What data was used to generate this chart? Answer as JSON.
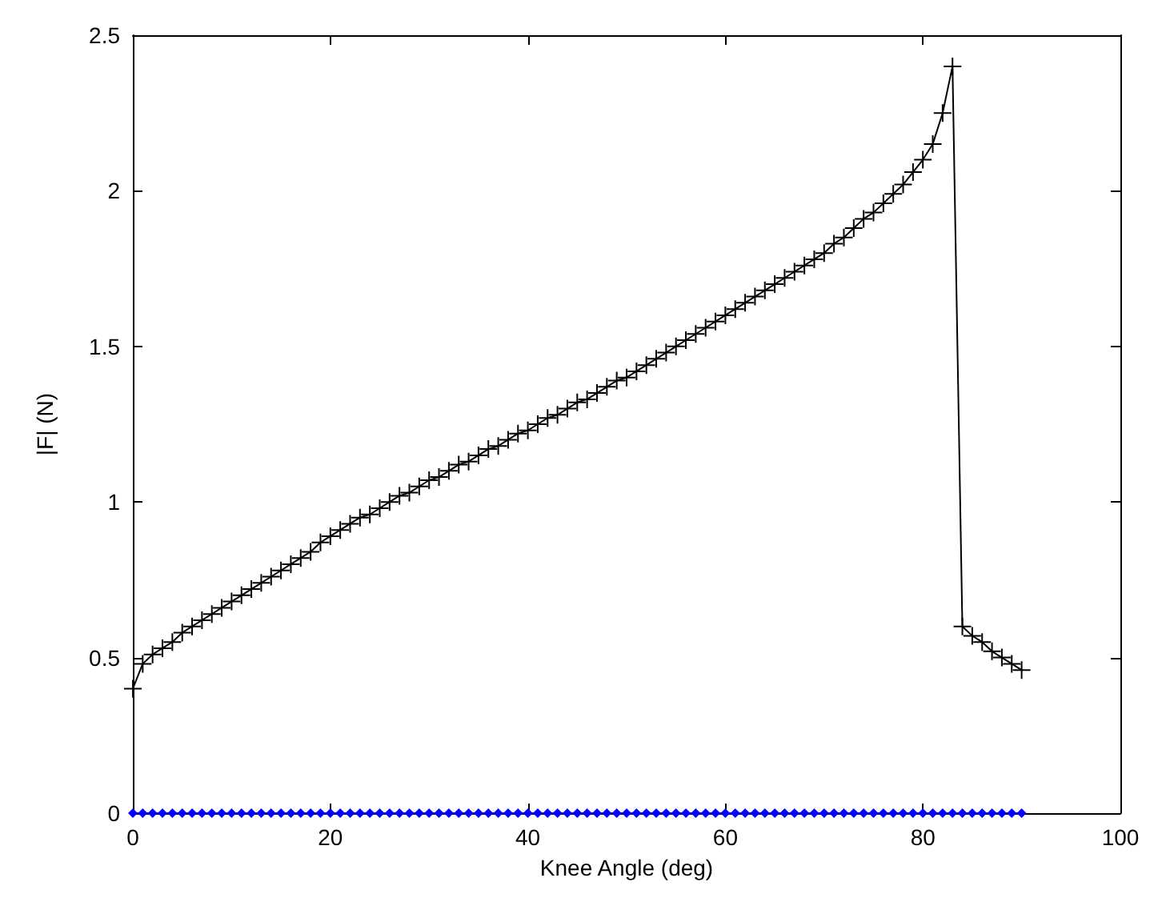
{
  "chart_data": {
    "type": "line",
    "xlabel": "Knee Angle (deg)",
    "ylabel": "|F| (N)",
    "x": [
      0,
      1,
      2,
      3,
      4,
      5,
      6,
      7,
      8,
      9,
      10,
      11,
      12,
      13,
      14,
      15,
      16,
      17,
      18,
      19,
      20,
      21,
      22,
      23,
      24,
      25,
      26,
      27,
      28,
      29,
      30,
      31,
      32,
      33,
      34,
      35,
      36,
      37,
      38,
      39,
      40,
      41,
      42,
      43,
      44,
      45,
      46,
      47,
      48,
      49,
      50,
      51,
      52,
      53,
      54,
      55,
      56,
      57,
      58,
      59,
      60,
      61,
      62,
      63,
      64,
      65,
      66,
      67,
      68,
      69,
      70,
      71,
      72,
      73,
      74,
      75,
      76,
      77,
      78,
      79,
      80,
      81,
      82,
      83,
      84,
      85,
      86,
      87,
      88,
      89,
      90
    ],
    "series": [
      {
        "color": "#000000",
        "marker": "cross",
        "values": [
          0.4,
          0.48,
          0.51,
          0.53,
          0.55,
          0.58,
          0.6,
          0.62,
          0.64,
          0.66,
          0.68,
          0.7,
          0.72,
          0.74,
          0.76,
          0.78,
          0.8,
          0.82,
          0.84,
          0.87,
          0.89,
          0.91,
          0.93,
          0.95,
          0.96,
          0.98,
          1.0,
          1.02,
          1.03,
          1.05,
          1.07,
          1.08,
          1.1,
          1.12,
          1.13,
          1.15,
          1.17,
          1.18,
          1.2,
          1.22,
          1.23,
          1.25,
          1.27,
          1.28,
          1.3,
          1.32,
          1.33,
          1.35,
          1.37,
          1.39,
          1.4,
          1.42,
          1.44,
          1.46,
          1.48,
          1.5,
          1.52,
          1.54,
          1.56,
          1.58,
          1.6,
          1.62,
          1.64,
          1.66,
          1.68,
          1.7,
          1.72,
          1.74,
          1.76,
          1.78,
          1.8,
          1.83,
          1.85,
          1.88,
          1.91,
          1.93,
          1.96,
          1.99,
          2.02,
          2.06,
          2.1,
          2.15,
          2.25,
          2.4,
          0.6,
          0.57,
          0.55,
          0.52,
          0.5,
          0.48,
          0.46
        ]
      },
      {
        "color": "#0000ff",
        "marker": "diamond",
        "values": [
          0,
          0,
          0,
          0,
          0,
          0,
          0,
          0,
          0,
          0,
          0,
          0,
          0,
          0,
          0,
          0,
          0,
          0,
          0,
          0,
          0,
          0,
          0,
          0,
          0,
          0,
          0,
          0,
          0,
          0,
          0,
          0,
          0,
          0,
          0,
          0,
          0,
          0,
          0,
          0,
          0,
          0,
          0,
          0,
          0,
          0,
          0,
          0,
          0,
          0,
          0,
          0,
          0,
          0,
          0,
          0,
          0,
          0,
          0,
          0,
          0,
          0,
          0,
          0,
          0,
          0,
          0,
          0,
          0,
          0,
          0,
          0,
          0,
          0,
          0,
          0,
          0,
          0,
          0,
          0,
          0,
          0,
          0,
          0,
          0,
          0,
          0,
          0,
          0,
          0,
          0
        ]
      }
    ],
    "xlim": [
      0,
      100
    ],
    "xticks": [
      0,
      20,
      40,
      60,
      80,
      100
    ],
    "ylim": [
      0,
      2.5
    ],
    "yticks": [
      0,
      0.5,
      1,
      1.5,
      2,
      2.5
    ],
    "grid": false,
    "line_style": "solid"
  }
}
